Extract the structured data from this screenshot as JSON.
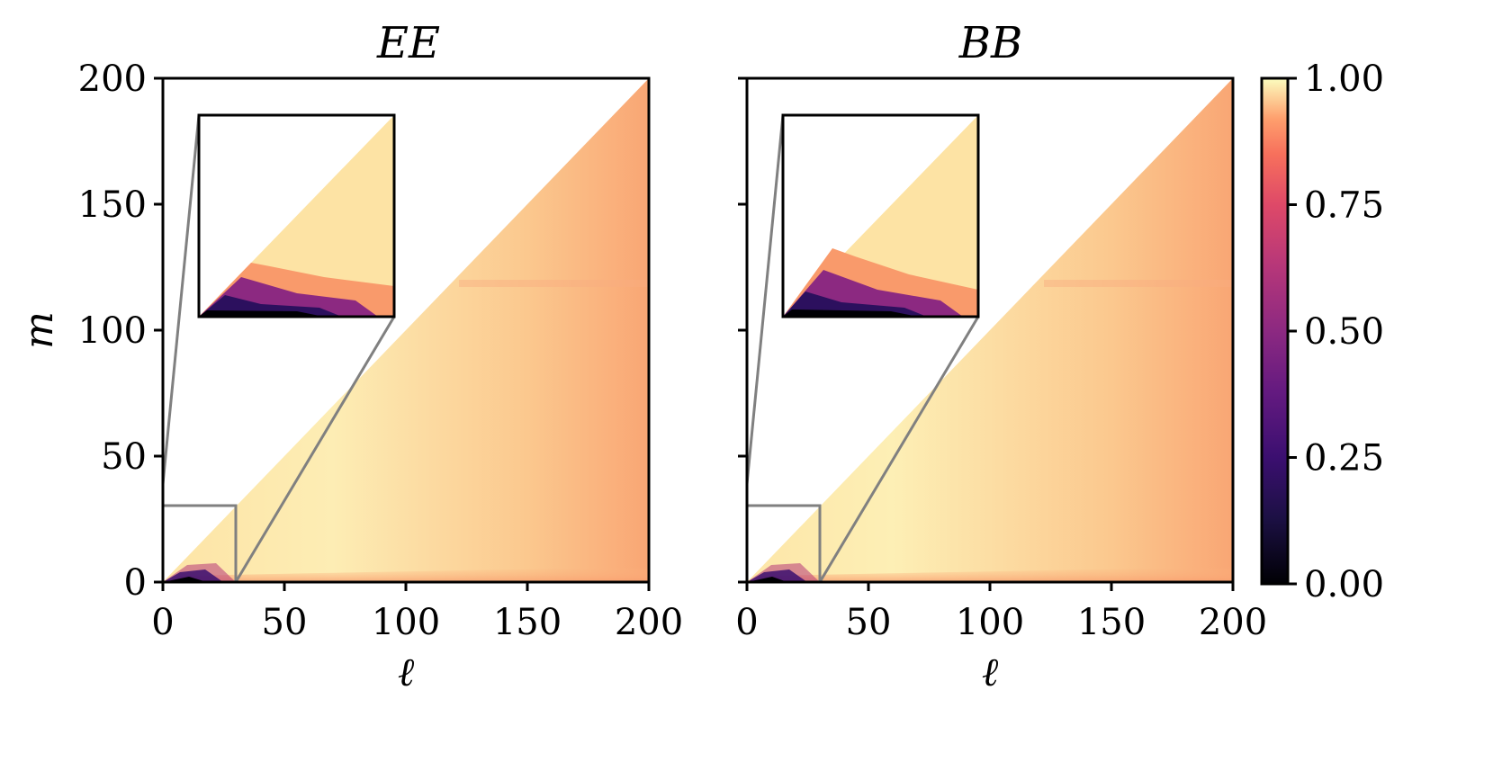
{
  "chart_data": [
    {
      "type": "heatmap",
      "title": "EE",
      "xlabel": "ℓ",
      "ylabel": "m",
      "xlim": [
        0,
        200
      ],
      "ylim": [
        0,
        200
      ],
      "xticks": [
        "0",
        "50",
        "100",
        "150",
        "200"
      ],
      "yticks": [
        "0",
        "50",
        "100",
        "150",
        "200"
      ],
      "domain": "m ≤ ℓ (lower triangle)",
      "description_values": {
        "low_region": "ℓ, m < 30 ≈ 0.0–0.5",
        "bulk": "≈ 0.85–0.95",
        "edge_ell_200": "≈ 0.80"
      },
      "inset": {
        "xlim": [
          0,
          30
        ],
        "ylim": [
          0,
          30
        ]
      }
    },
    {
      "type": "heatmap",
      "title": "BB",
      "xlabel": "ℓ",
      "ylabel": "",
      "xlim": [
        0,
        200
      ],
      "ylim": [
        0,
        200
      ],
      "xticks": [
        "0",
        "50",
        "100",
        "150",
        "200"
      ],
      "yticks": [],
      "domain": "m ≤ ℓ (lower triangle)",
      "description_values": {
        "low_region": "ℓ, m < 30 ≈ 0.0–0.5",
        "bulk": "≈ 0.85–0.95",
        "edge_ell_200": "≈ 0.80"
      },
      "inset": {
        "xlim": [
          0,
          30
        ],
        "ylim": [
          0,
          30
        ]
      }
    }
  ],
  "colorbar": {
    "colormap": "magma",
    "range": [
      0.0,
      1.0
    ],
    "ticks": [
      "0.00",
      "0.25",
      "0.50",
      "0.75",
      "1.00"
    ],
    "colors": [
      "#000004",
      "#3b0f70",
      "#8c2981",
      "#de4968",
      "#fe9f6d",
      "#fcfdbf"
    ]
  },
  "inset_box_color": "#808080"
}
